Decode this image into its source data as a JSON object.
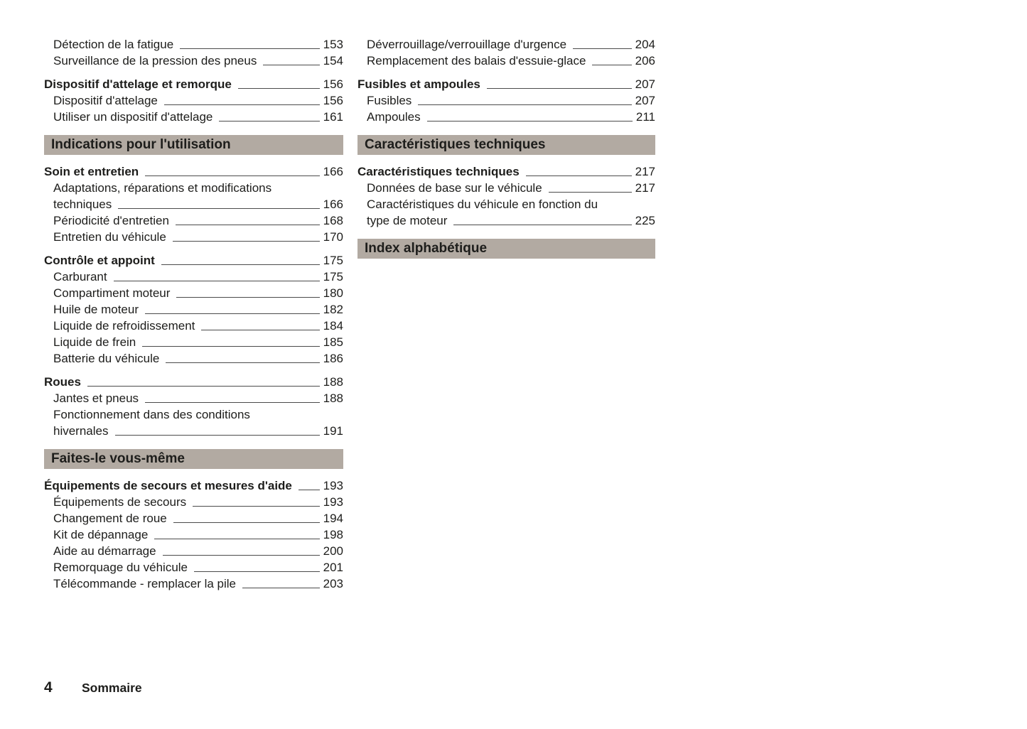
{
  "theme": {
    "bar_background": "#b2aaa2",
    "text_color": "#1d1d1b",
    "leader_line_color": "#4b4b4b",
    "page_background": "#ffffff"
  },
  "footer": {
    "page_number": "4",
    "label": "Sommaire"
  },
  "columns": [
    {
      "side": "left",
      "blocks": [
        {
          "type": "entries",
          "items": [
            {
              "label": "Détection de la fatigue",
              "page": "153",
              "bold": false
            },
            {
              "label": "Surveillance de la pression des pneus",
              "page": "154",
              "bold": false
            }
          ]
        },
        {
          "type": "entries",
          "items": [
            {
              "label": "Dispositif d'attelage et remorque",
              "page": "156",
              "bold": true
            },
            {
              "label": "Dispositif d'attelage",
              "page": "156",
              "bold": false
            },
            {
              "label": "Utiliser un dispositif d'attelage",
              "page": "161",
              "bold": false
            }
          ]
        },
        {
          "type": "bar",
          "label": "Indications pour l'utilisation"
        },
        {
          "type": "entries",
          "items": [
            {
              "label": "Soin et entretien",
              "page": "166",
              "bold": true
            },
            {
              "label": "Adaptations, réparations et modifications",
              "label2": "techniques",
              "page": "166",
              "bold": false
            },
            {
              "label": "Périodicité d'entretien",
              "page": "168",
              "bold": false
            },
            {
              "label": "Entretien du véhicule",
              "page": "170",
              "bold": false
            }
          ]
        },
        {
          "type": "entries",
          "items": [
            {
              "label": "Contrôle et appoint",
              "page": "175",
              "bold": true
            },
            {
              "label": "Carburant",
              "page": "175",
              "bold": false
            },
            {
              "label": "Compartiment moteur",
              "page": "180",
              "bold": false
            },
            {
              "label": "Huile de moteur",
              "page": "182",
              "bold": false
            },
            {
              "label": "Liquide de refroidissement",
              "page": "184",
              "bold": false
            },
            {
              "label": "Liquide de frein",
              "page": "185",
              "bold": false
            },
            {
              "label": "Batterie du véhicule",
              "page": "186",
              "bold": false
            }
          ]
        },
        {
          "type": "entries",
          "items": [
            {
              "label": "Roues",
              "page": "188",
              "bold": true
            },
            {
              "label": "Jantes et pneus",
              "page": "188",
              "bold": false
            },
            {
              "label": "Fonctionnement dans des conditions",
              "label2": "hivernales",
              "page": "191",
              "bold": false
            }
          ]
        },
        {
          "type": "bar",
          "label": "Faites-le vous-même"
        },
        {
          "type": "entries",
          "items": [
            {
              "label": "Équipements de secours et mesures d'aide",
              "page": "193",
              "bold": true
            },
            {
              "label": "Équipements de secours",
              "page": "193",
              "bold": false
            },
            {
              "label": "Changement de roue",
              "page": "194",
              "bold": false
            },
            {
              "label": "Kit de dépannage",
              "page": "198",
              "bold": false
            },
            {
              "label": "Aide au démarrage",
              "page": "200",
              "bold": false
            },
            {
              "label": "Remorquage du véhicule",
              "page": "201",
              "bold": false
            },
            {
              "label": "Télécommande - remplacer la pile",
              "page": "203",
              "bold": false
            }
          ]
        }
      ]
    },
    {
      "side": "right",
      "blocks": [
        {
          "type": "entries",
          "items": [
            {
              "label": "Déverrouillage/verrouillage d'urgence",
              "page": "204",
              "bold": false
            },
            {
              "label": "Remplacement des balais d'essuie-glace",
              "page": "206",
              "bold": false
            }
          ]
        },
        {
          "type": "entries",
          "items": [
            {
              "label": "Fusibles et ampoules",
              "page": "207",
              "bold": true
            },
            {
              "label": "Fusibles",
              "page": "207",
              "bold": false
            },
            {
              "label": "Ampoules",
              "page": "211",
              "bold": false
            }
          ]
        },
        {
          "type": "bar",
          "label": "Caractéristiques techniques"
        },
        {
          "type": "entries",
          "items": [
            {
              "label": "Caractéristiques techniques",
              "page": "217",
              "bold": true
            },
            {
              "label": "Données de base sur le véhicule",
              "page": "217",
              "bold": false
            },
            {
              "label": "Caractéristiques du véhicule en fonction du",
              "label2": "type de moteur",
              "page": "225",
              "bold": false
            }
          ]
        },
        {
          "type": "bar",
          "label": "Index alphabétique"
        }
      ]
    }
  ]
}
